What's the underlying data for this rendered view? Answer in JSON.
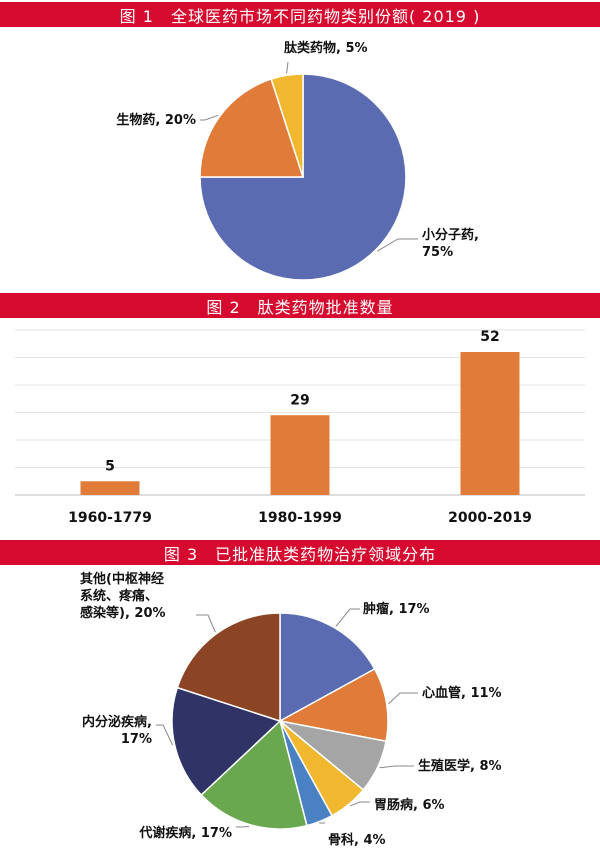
{
  "chart_data": [
    {
      "type": "pie",
      "title": "图 1　全球医药市场不同药物类别份额( 2019 )",
      "slices": [
        {
          "name": "小分子药",
          "value": 75,
          "color": "#5b6bb1",
          "label_lines": [
            "小分子药,",
            "75%"
          ]
        },
        {
          "name": "生物药",
          "value": 20,
          "color": "#e07b39",
          "label_lines": [
            "生物药, 20%"
          ]
        },
        {
          "name": "肽类药物",
          "value": 5,
          "color": "#f1b82f",
          "label_lines": [
            "肽类药物, 5%"
          ]
        }
      ]
    },
    {
      "type": "bar",
      "title": "图 2　肽类药物批准数量",
      "categories": [
        "1960-1779",
        "1980-1999",
        "2000-2019"
      ],
      "values": [
        5,
        29,
        52
      ],
      "value_labels": [
        "5",
        "29",
        "52"
      ],
      "color": "#e07b39",
      "ylim": [
        0,
        60
      ],
      "grid": true
    },
    {
      "type": "pie",
      "title": "图 3　已批准肽类药物治疗领域分布",
      "slices": [
        {
          "name": "肿瘤",
          "value": 17,
          "color": "#5b6bb1",
          "label_lines": [
            "肿瘤, 17%"
          ]
        },
        {
          "name": "心血管",
          "value": 11,
          "color": "#e07b39",
          "label_lines": [
            "心血管, 11%"
          ]
        },
        {
          "name": "生殖医学",
          "value": 8,
          "color": "#a5a5a5",
          "label_lines": [
            "生殖医学, 8%"
          ]
        },
        {
          "name": "胃肠病",
          "value": 6,
          "color": "#f1b82f",
          "label_lines": [
            "胃肠病, 6%"
          ]
        },
        {
          "name": "骨科",
          "value": 4,
          "color": "#4a81c2",
          "label_lines": [
            "骨科, 4%"
          ]
        },
        {
          "name": "代谢疾病",
          "value": 17,
          "color": "#6aa84f",
          "label_lines": [
            "代谢疾病, 17%"
          ]
        },
        {
          "name": "内分泌疾病",
          "value": 17,
          "color": "#2f3366",
          "label_lines": [
            "内分泌疾病,",
            "17%"
          ]
        },
        {
          "name": "其他(中枢神经系统、疼痛、感染等)",
          "value": 20,
          "color": "#8b4424",
          "label_lines": [
            "其他(中枢神经",
            "系统、疼痛、",
            "感染等), 20%"
          ]
        }
      ]
    }
  ]
}
